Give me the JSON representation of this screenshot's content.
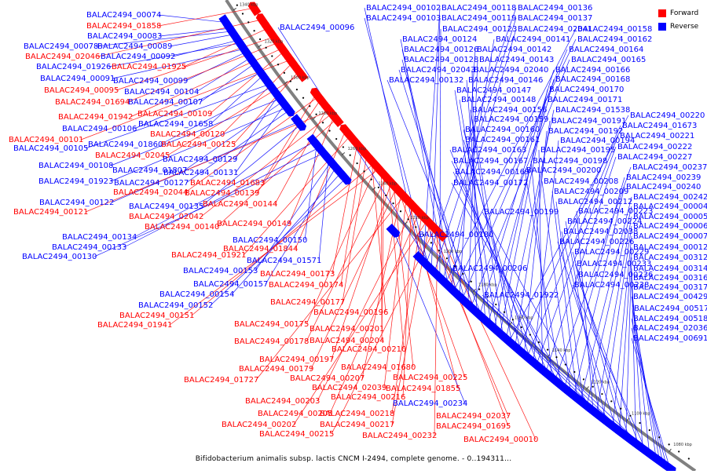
{
  "legend": [
    {
      "label": "Forward",
      "color": "#ff0000"
    },
    {
      "label": "Reverse",
      "color": "#0000ff"
    }
  ],
  "caption": "Bifidobacterium animalis subsp. lactis CNCM I-2494, complete genome. - 0..194311...",
  "colors": {
    "forward": "#ff0000",
    "reverse": "#0000ff",
    "backbone": "#808080"
  },
  "scale_ticks": [
    "1340 kbp",
    "1320 kbp",
    "1300 kbp",
    "1280 kbp",
    "1260 kbp",
    "1240 kbp",
    "1220 kbp",
    "1200 kbp",
    "1180 kbp",
    "1160 kbp",
    "1140 kbp",
    "1120 kbp",
    "1100 kbp",
    "1080 kbp"
  ],
  "genes": [
    {
      "name": "BALAC2494_00074",
      "s": "r"
    },
    {
      "name": "BALAC2494_01858",
      "s": "f"
    },
    {
      "name": "BALAC2494_00083",
      "s": "r"
    },
    {
      "name": "BALAC2494_00078",
      "s": "r"
    },
    {
      "name": "BALAC2494_00089",
      "s": "r"
    },
    {
      "name": "BALAC2494_02046",
      "s": "f"
    },
    {
      "name": "BALAC2494_00092",
      "s": "r"
    },
    {
      "name": "BALAC2494_01926",
      "s": "r"
    },
    {
      "name": "BALAC2494_01925",
      "s": "f"
    },
    {
      "name": "BALAC2494_00091",
      "s": "r"
    },
    {
      "name": "BALAC2494_00099",
      "s": "r"
    },
    {
      "name": "BALAC2494_00095",
      "s": "f"
    },
    {
      "name": "BALAC2494_00104",
      "s": "r"
    },
    {
      "name": "BALAC2494_01694",
      "s": "f"
    },
    {
      "name": "BALAC2494_00107",
      "s": "r"
    },
    {
      "name": "BALAC2494_01942",
      "s": "f"
    },
    {
      "name": "BALAC2494_00109",
      "s": "f"
    },
    {
      "name": "BALAC2494_00106",
      "s": "r"
    },
    {
      "name": "BALAC2494_01658",
      "s": "r"
    },
    {
      "name": "BALAC2494_00101",
      "s": "f"
    },
    {
      "name": "BALAC2494_00120",
      "s": "f"
    },
    {
      "name": "BALAC2494_00105",
      "s": "r"
    },
    {
      "name": "BALAC2494_01860",
      "s": "r"
    },
    {
      "name": "BALAC2494_00125",
      "s": "f"
    },
    {
      "name": "BALAC2494_02045",
      "s": "f"
    },
    {
      "name": "BALAC2494_00129",
      "s": "r"
    },
    {
      "name": "BALAC2494_00108",
      "s": "r"
    },
    {
      "name": "BALAC2494_01807",
      "s": "r"
    },
    {
      "name": "BALAC2494_00131",
      "s": "r"
    },
    {
      "name": "BALAC2494_01923",
      "s": "r"
    },
    {
      "name": "BALAC2494_00127",
      "s": "r"
    },
    {
      "name": "BALAC2494_01683",
      "s": "f"
    },
    {
      "name": "BALAC2494_02044",
      "s": "f"
    },
    {
      "name": "BALAC2494_00139",
      "s": "f"
    },
    {
      "name": "BALAC2494_00122",
      "s": "r"
    },
    {
      "name": "BALAC2494_00135",
      "s": "r"
    },
    {
      "name": "BALAC2494_00144",
      "s": "f"
    },
    {
      "name": "BALAC2494_00121",
      "s": "f"
    },
    {
      "name": "BALAC2494_02042",
      "s": "f"
    },
    {
      "name": "BALAC2494_00149",
      "s": "f"
    },
    {
      "name": "BALAC2494_00140",
      "s": "f"
    },
    {
      "name": "BALAC2494_00134",
      "s": "r"
    },
    {
      "name": "BALAC2494_00150",
      "s": "r"
    },
    {
      "name": "BALAC2494_00133",
      "s": "r"
    },
    {
      "name": "BALAC2494_01844",
      "s": "f"
    },
    {
      "name": "BALAC2494_00130",
      "s": "r"
    },
    {
      "name": "BALAC2494_01921",
      "s": "f"
    },
    {
      "name": "BALAC2494_01571",
      "s": "r"
    },
    {
      "name": "BALAC2494_00153",
      "s": "r"
    },
    {
      "name": "BALAC2494_00173",
      "s": "f"
    },
    {
      "name": "BALAC2494_00157",
      "s": "r"
    },
    {
      "name": "BALAC2494_00174",
      "s": "f"
    },
    {
      "name": "BALAC2494_00154",
      "s": "r"
    },
    {
      "name": "BALAC2494_00177",
      "s": "f"
    },
    {
      "name": "BALAC2494_00152",
      "s": "r"
    },
    {
      "name": "BALAC2494_00196",
      "s": "f"
    },
    {
      "name": "BALAC2494_00151",
      "s": "f"
    },
    {
      "name": "BALAC2494_00175",
      "s": "f"
    },
    {
      "name": "BALAC2494_01941",
      "s": "f"
    },
    {
      "name": "BALAC2494_00201",
      "s": "f"
    },
    {
      "name": "BALAC2494_00204",
      "s": "f"
    },
    {
      "name": "BALAC2494_00178",
      "s": "f"
    },
    {
      "name": "BALAC2494_00210",
      "s": "f"
    },
    {
      "name": "BALAC2494_00197",
      "s": "f"
    },
    {
      "name": "BALAC2494_01680",
      "s": "f"
    },
    {
      "name": "BALAC2494_00179",
      "s": "f"
    },
    {
      "name": "BALAC2494_00225",
      "s": "f"
    },
    {
      "name": "BALAC2494_00207",
      "s": "f"
    },
    {
      "name": "BALAC2494_01727",
      "s": "f"
    },
    {
      "name": "BALAC2494_02039",
      "s": "f"
    },
    {
      "name": "BALAC2494_01855",
      "s": "f"
    },
    {
      "name": "BALAC2494_00216",
      "s": "f"
    },
    {
      "name": "BALAC2494_00203",
      "s": "f"
    },
    {
      "name": "BALAC2494_00234",
      "s": "r"
    },
    {
      "name": "BALAC2494_00205",
      "s": "f"
    },
    {
      "name": "BALAC2494_00218",
      "s": "f"
    },
    {
      "name": "BALAC2494_02037",
      "s": "f"
    },
    {
      "name": "BALAC2494_00202",
      "s": "f"
    },
    {
      "name": "BALAC2494_00217",
      "s": "f"
    },
    {
      "name": "BALAC2494_01695",
      "s": "f"
    },
    {
      "name": "BALAC2494_00215",
      "s": "f"
    },
    {
      "name": "BALAC2494_00232",
      "s": "f"
    },
    {
      "name": "BALAC2494_00010",
      "s": "f"
    },
    {
      "name": "BALAC2494_00102",
      "s": "r"
    },
    {
      "name": "BALAC2494_00118",
      "s": "r"
    },
    {
      "name": "BALAC2494_00136",
      "s": "r"
    },
    {
      "name": "BALAC2494_00103",
      "s": "r"
    },
    {
      "name": "BALAC2494_00119",
      "s": "r"
    },
    {
      "name": "BALAC2494_00137",
      "s": "r"
    },
    {
      "name": "BALAC2494_00096",
      "s": "r"
    },
    {
      "name": "BALAC2494_00123",
      "s": "r"
    },
    {
      "name": "BALAC2494_02041",
      "s": "r"
    },
    {
      "name": "BALAC2494_00158",
      "s": "r"
    },
    {
      "name": "BALAC2494_00124",
      "s": "r"
    },
    {
      "name": "BALAC2494_00141",
      "s": "r"
    },
    {
      "name": "BALAC2494_00162",
      "s": "r"
    },
    {
      "name": "BALAC2494_00126",
      "s": "r"
    },
    {
      "name": "BALAC2494_00142",
      "s": "r"
    },
    {
      "name": "BALAC2494_00164",
      "s": "r"
    },
    {
      "name": "BALAC2494_00128",
      "s": "r"
    },
    {
      "name": "BALAC2494_00143",
      "s": "r"
    },
    {
      "name": "BALAC2494_00165",
      "s": "r"
    },
    {
      "name": "BALAC2494_02043",
      "s": "r"
    },
    {
      "name": "BALAC2494_02040",
      "s": "r"
    },
    {
      "name": "BALAC2494_00166",
      "s": "r"
    },
    {
      "name": "BALAC2494_00132",
      "s": "r"
    },
    {
      "name": "BALAC2494_00146",
      "s": "r"
    },
    {
      "name": "BALAC2494_00168",
      "s": "r"
    },
    {
      "name": "BALAC2494_00147",
      "s": "r"
    },
    {
      "name": "BALAC2494_00170",
      "s": "r"
    },
    {
      "name": "BALAC2494_00148",
      "s": "r"
    },
    {
      "name": "BALAC2494_00171",
      "s": "r"
    },
    {
      "name": "BALAC2494_00156",
      "s": "r"
    },
    {
      "name": "BALAC2494_01538",
      "s": "r"
    },
    {
      "name": "BALAC2494_00220",
      "s": "r"
    },
    {
      "name": "BALAC2494_00159",
      "s": "r"
    },
    {
      "name": "BALAC2494_00191",
      "s": "r"
    },
    {
      "name": "BALAC2494_01673",
      "s": "r"
    },
    {
      "name": "BALAC2494_00160",
      "s": "r"
    },
    {
      "name": "BALAC2494_00192",
      "s": "r"
    },
    {
      "name": "BALAC2494_00221",
      "s": "r"
    },
    {
      "name": "BALAC2494_00161",
      "s": "r"
    },
    {
      "name": "BALAC2494_00194",
      "s": "r"
    },
    {
      "name": "BALAC2494_00222",
      "s": "r"
    },
    {
      "name": "BALAC2494_00163",
      "s": "r"
    },
    {
      "name": "BALAC2494_00195",
      "s": "r"
    },
    {
      "name": "BALAC2494_00227",
      "s": "r"
    },
    {
      "name": "BALAC2494_00167",
      "s": "r"
    },
    {
      "name": "BALAC2494_00198",
      "s": "r"
    },
    {
      "name": "BALAC2494_00237",
      "s": "r"
    },
    {
      "name": "BALAC2494_00169",
      "s": "r"
    },
    {
      "name": "BALAC2494_00200",
      "s": "r"
    },
    {
      "name": "BALAC2494_00239",
      "s": "r"
    },
    {
      "name": "BALAC2494_00172",
      "s": "r"
    },
    {
      "name": "BALAC2494_00208",
      "s": "r"
    },
    {
      "name": "BALAC2494_00240",
      "s": "r"
    },
    {
      "name": "BALAC2494_00209",
      "s": "r"
    },
    {
      "name": "BALAC2494_00242",
      "s": "r"
    },
    {
      "name": "BALAC2494_00212",
      "s": "r"
    },
    {
      "name": "BALAC2494_00004",
      "s": "r"
    },
    {
      "name": "BALAC2494_00199",
      "s": "r"
    },
    {
      "name": "BALAC2494_00223",
      "s": "r"
    },
    {
      "name": "BALAC2494_00005",
      "s": "r"
    },
    {
      "name": "BALAC2494_00224",
      "s": "r"
    },
    {
      "name": "BALAC2494_00006",
      "s": "r"
    },
    {
      "name": "BALAC2494_02038",
      "s": "r"
    },
    {
      "name": "BALAC2494_00180",
      "s": "r"
    },
    {
      "name": "BALAC2494_00007",
      "s": "r"
    },
    {
      "name": "BALAC2494_00226",
      "s": "r"
    },
    {
      "name": "BALAC2494_00012",
      "s": "r"
    },
    {
      "name": "BALAC2494_00229",
      "s": "r"
    },
    {
      "name": "BALAC2494_00312",
      "s": "r"
    },
    {
      "name": "BALAC2494_00233",
      "s": "r"
    },
    {
      "name": "BALAC2494_00206",
      "s": "r"
    },
    {
      "name": "BALAC2494_00314",
      "s": "r"
    },
    {
      "name": "BALAC2494_00236",
      "s": "r"
    },
    {
      "name": "BALAC2494_00316",
      "s": "r"
    },
    {
      "name": "BALAC2494_00238",
      "s": "r"
    },
    {
      "name": "BALAC2494_00317",
      "s": "r"
    },
    {
      "name": "BALAC2494_01922",
      "s": "r"
    },
    {
      "name": "BALAC2494_00429",
      "s": "r"
    },
    {
      "name": "BALAC2494_00517",
      "s": "r"
    },
    {
      "name": "BALAC2494_00518",
      "s": "r"
    },
    {
      "name": "BALAC2494_02036",
      "s": "r"
    },
    {
      "name": "BALAC2494_00691",
      "s": "r"
    }
  ]
}
